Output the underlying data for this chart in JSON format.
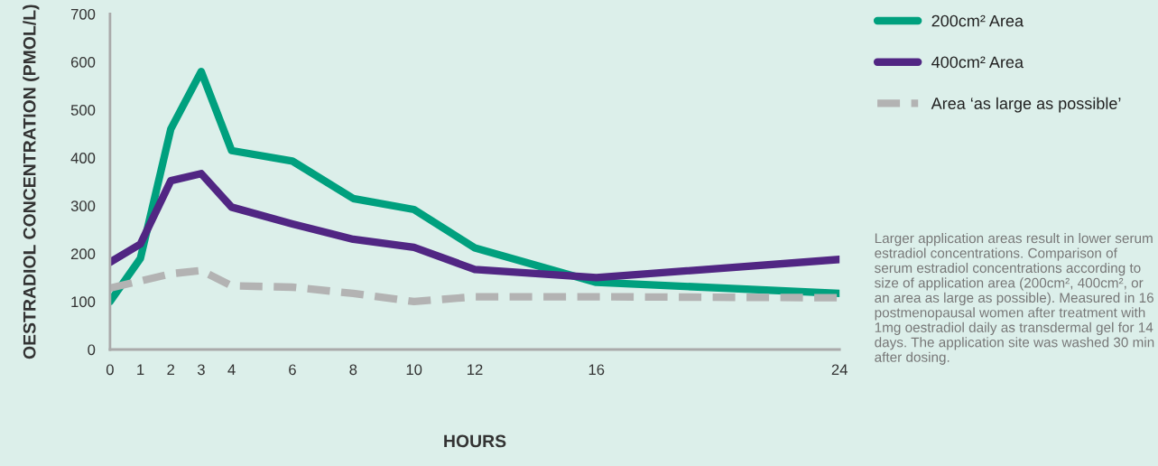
{
  "chart_data": {
    "type": "line",
    "xlabel": "HOURS",
    "ylabel": "OESTRADIOL CONCENTRATION (PMOL/L)",
    "x": [
      0,
      1,
      2,
      3,
      4,
      6,
      8,
      10,
      12,
      16,
      24
    ],
    "series": [
      {
        "name": "200cm² Area",
        "color": "#00a07e",
        "values": [
          100,
          190,
          460,
          580,
          415,
          393,
          315,
          292,
          212,
          140,
          117
        ]
      },
      {
        "name": "400cm² Area",
        "color": "#512683",
        "values": [
          182,
          220,
          352,
          367,
          297,
          262,
          230,
          213,
          167,
          150,
          188
        ]
      },
      {
        "name": "Area ‘as large as possible’",
        "color": "#b3b3b3",
        "line_style": "dashed",
        "values": [
          128,
          143,
          158,
          165,
          133,
          130,
          117,
          100,
          110,
          110,
          108
        ]
      }
    ],
    "xlim": [
      0,
      24
    ],
    "xticks": [
      0,
      1,
      2,
      3,
      4,
      6,
      8,
      10,
      12,
      16,
      24
    ],
    "ylim": [
      0,
      700
    ],
    "yticks": [
      0,
      100,
      200,
      300,
      400,
      500,
      600,
      700
    ],
    "grid": false,
    "legend": "right",
    "annotations": [
      "Larger application areas result in lower serum estradiol concentrations. Comparison of serum estradiol concentrations according to size of application area (200cm², 400cm², or an area as large as possible). Measured in 16 postmenopausal women after treatment with 1mg oestradiol daily as transdermal gel for 14 days. The application site was washed 30 min after dosing."
    ]
  }
}
